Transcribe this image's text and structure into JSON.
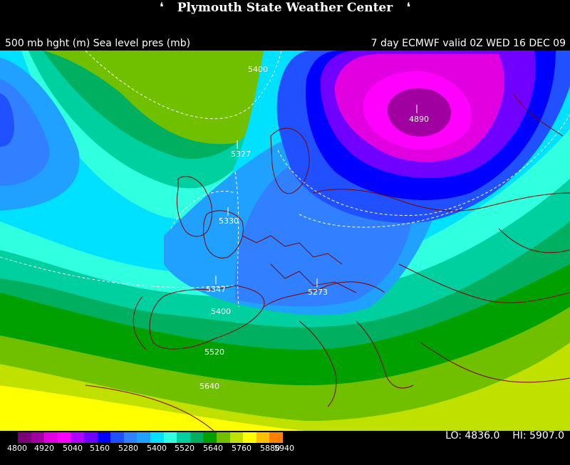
{
  "header": {
    "title": "Plymouth State Weather Center",
    "logo_icon": "bird-icon"
  },
  "subtitle": {
    "left": "500 mb hght (m) Sea level pres (mb)",
    "right": "7 day ECMWF  valid 0Z WED 16 DEC 09"
  },
  "map_labels": {
    "contour_top": "5400",
    "low_center": "4890",
    "uk_north": "5327",
    "uk_south": "5330",
    "france": "5347",
    "balkans": "5273",
    "contour_5400": "5400",
    "contour_5520": "5520",
    "contour_5640": "5640"
  },
  "colorbar": {
    "colors": [
      "#7a007a",
      "#a000a0",
      "#e000e0",
      "#ff00ff",
      "#b000ff",
      "#7000ff",
      "#0000ff",
      "#2050ff",
      "#3080ff",
      "#20a0ff",
      "#00e0ff",
      "#30ffe0",
      "#00d0a0",
      "#00b060",
      "#00a000",
      "#70c000",
      "#c0e000",
      "#ffff00",
      "#ffc000",
      "#ff8000"
    ],
    "labels": [
      "4800",
      "4920",
      "5040",
      "5160",
      "5280",
      "5400",
      "5520",
      "5640",
      "5760",
      "5880",
      "5940"
    ]
  },
  "stats": {
    "lo": "LO: 4836.0",
    "hi": "HI: 5907.0"
  }
}
